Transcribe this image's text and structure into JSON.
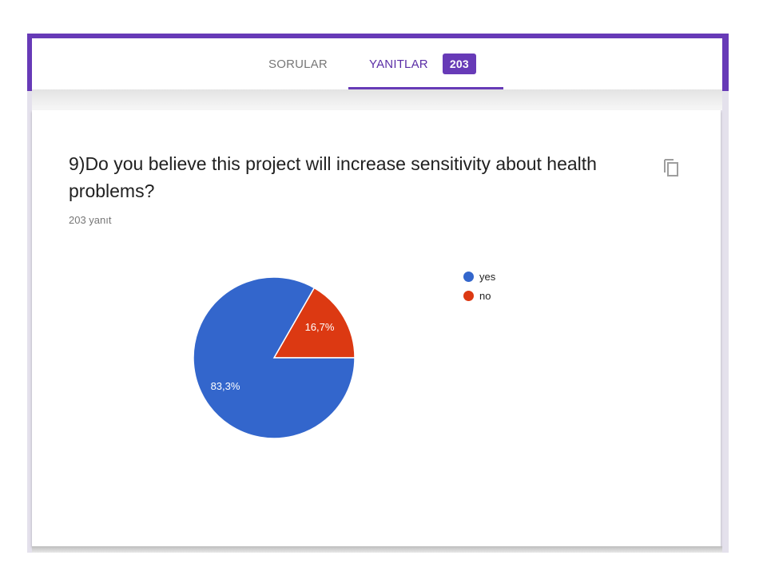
{
  "tabs": {
    "questions_label": "SORULAR",
    "responses_label": "YANITLAR",
    "responses_count": "203"
  },
  "question": {
    "title": "9)Do you believe this project will increase sensitivity about health problems?",
    "response_count": "203 yanıt",
    "copy_icon": "copy-icon"
  },
  "colors": {
    "accent": "#673ab7",
    "yes": "#3366cc",
    "no": "#dc3912"
  },
  "chart_data": {
    "type": "pie",
    "title": "9)Do you believe this project will increase sensitivity about health problems?",
    "categories": [
      "yes",
      "no"
    ],
    "values": [
      83.3,
      16.7
    ],
    "labels": [
      "83,3%",
      "16,7%"
    ],
    "colors": [
      "#3366cc",
      "#dc3912"
    ],
    "total_responses": 203,
    "legend_position": "right"
  },
  "legend": {
    "items": [
      {
        "label": "yes",
        "color": "#3366cc"
      },
      {
        "label": "no",
        "color": "#dc3912"
      }
    ]
  }
}
